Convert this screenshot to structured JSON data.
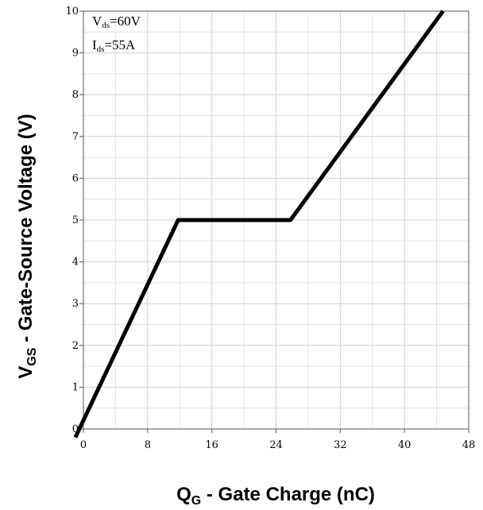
{
  "chart_data": {
    "type": "line",
    "xlabel": {
      "main": "Q",
      "sub": "G",
      "rest": " - Gate Charge (nC)"
    },
    "ylabel": {
      "main": "V",
      "sub": "GS",
      "rest": " - Gate-Source Voltage (V)"
    },
    "annotations": [
      {
        "main": "V",
        "sub": "ds",
        "rest": "=60V"
      },
      {
        "main": "I",
        "sub": "ds",
        "rest": "=55A"
      }
    ],
    "xlim": [
      0,
      48
    ],
    "ylim": [
      0,
      10
    ],
    "xticks": [
      0,
      8,
      16,
      24,
      32,
      40,
      48
    ],
    "yticks": [
      0,
      1,
      2,
      3,
      4,
      5,
      6,
      7,
      8,
      9,
      10
    ],
    "grid": true,
    "series": [
      {
        "x": [
          -1,
          11.8,
          25.8,
          44.8
        ],
        "y": [
          -0.2,
          5.0,
          5.0,
          10.0
        ]
      }
    ]
  }
}
